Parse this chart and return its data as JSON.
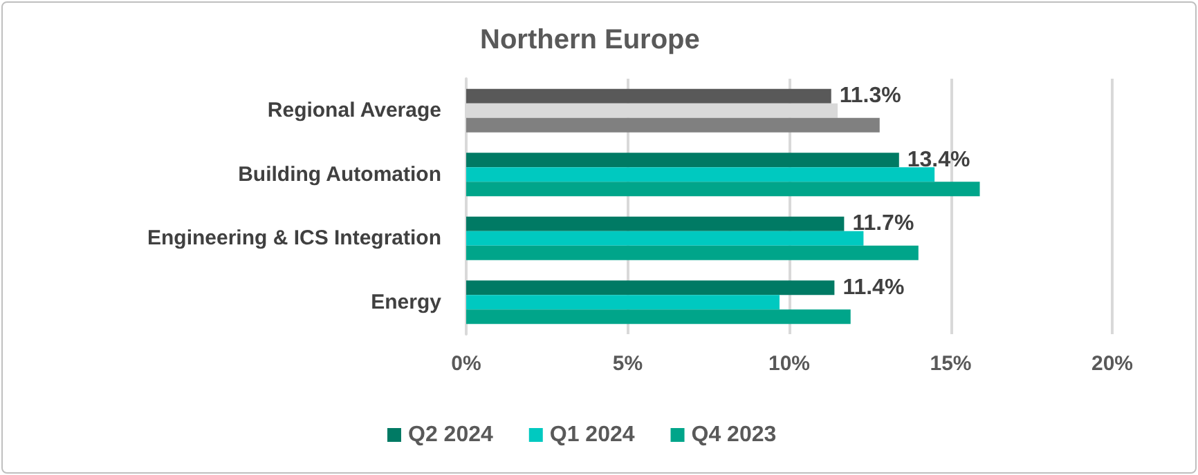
{
  "chart_data": {
    "type": "bar",
    "orientation": "horizontal",
    "title": "Northern Europe",
    "categories": [
      "Regional Average",
      "Building Automation",
      "Engineering & ICS Integration",
      "Energy"
    ],
    "series": [
      {
        "name": "Q2 2024",
        "color": "#007a64",
        "colors": [
          "#595959",
          "#007a64",
          "#007a64",
          "#007a64"
        ],
        "values": [
          11.3,
          13.4,
          11.7,
          11.4
        ],
        "value_labels": [
          "11.3%",
          "13.4%",
          "11.7%",
          "11.4%"
        ]
      },
      {
        "name": "Q1 2024",
        "color": "#00c9c0",
        "colors": [
          "#d9d9d9",
          "#00c9c0",
          "#00c9c0",
          "#00c9c0"
        ],
        "values": [
          11.5,
          14.5,
          12.3,
          9.7
        ]
      },
      {
        "name": "Q4 2023",
        "color": "#00a58a",
        "colors": [
          "#808080",
          "#00a58a",
          "#00a58a",
          "#00a58a"
        ],
        "values": [
          12.8,
          15.9,
          14.0,
          11.9
        ]
      }
    ],
    "xlim": [
      0,
      20
    ],
    "xticks": [
      {
        "value": 0,
        "label": "0%"
      },
      {
        "value": 5,
        "label": "5%"
      },
      {
        "value": 10,
        "label": "10%"
      },
      {
        "value": 15,
        "label": "15%"
      },
      {
        "value": 20,
        "label": "20%"
      }
    ],
    "grid": "x",
    "legend": "bottom"
  }
}
